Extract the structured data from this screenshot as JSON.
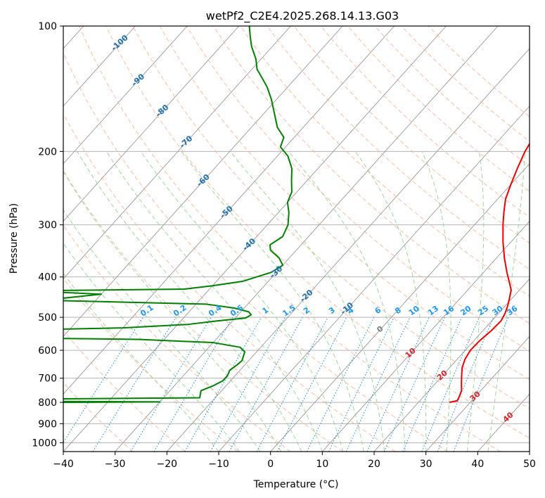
{
  "chart_data": {
    "type": "skew-t",
    "title": "wetPf2_C2E4.2025.268.14.13.G03",
    "xlabel": "Temperature (°C)",
    "ylabel": "Pressure (hPa)",
    "xlim": [
      -40,
      50
    ],
    "ylim": [
      1050,
      100
    ],
    "x_ticks": [
      -40,
      -30,
      -20,
      -10,
      0,
      10,
      20,
      30,
      40,
      50
    ],
    "y_ticks": [
      100,
      200,
      300,
      400,
      500,
      600,
      700,
      800,
      900,
      1000
    ],
    "pressure_scale": "log",
    "grid": true,
    "temperature_profile": {
      "color": "#ee0000",
      "points": [
        [
          800,
          26.0
        ],
        [
          793,
          27.2
        ],
        [
          780,
          27.0
        ],
        [
          750,
          26.3
        ],
        [
          720,
          25.0
        ],
        [
          690,
          23.7
        ],
        [
          660,
          22.4
        ],
        [
          630,
          21.5
        ],
        [
          600,
          21.0
        ],
        [
          570,
          21.1
        ],
        [
          540,
          21.6
        ],
        [
          510,
          21.8
        ],
        [
          490,
          21.3
        ],
        [
          470,
          20.5
        ],
        [
          450,
          19.5
        ],
        [
          430,
          18.4
        ],
        [
          410,
          16.5
        ],
        [
          390,
          14.5
        ],
        [
          360,
          11.5
        ],
        [
          330,
          8.5
        ],
        [
          300,
          5.5
        ],
        [
          280,
          3.5
        ],
        [
          260,
          1.5
        ],
        [
          240,
          0.0
        ],
        [
          220,
          -1.5
        ],
        [
          200,
          -3.0
        ],
        [
          185,
          -3.8
        ],
        [
          170,
          -4.5
        ],
        [
          155,
          -5.0
        ],
        [
          140,
          -6.0
        ],
        [
          130,
          -7.5
        ],
        [
          122,
          -8.5
        ],
        [
          115,
          -9.0
        ],
        [
          108,
          -10.0
        ],
        [
          100,
          -11.5
        ]
      ]
    },
    "dewpoint_profile": {
      "color": "#008000",
      "points": [
        [
          800,
          -50.0
        ],
        [
          798,
          -30.0
        ],
        [
          796,
          -48.0
        ],
        [
          790,
          -80.0
        ],
        [
          780,
          -23.0
        ],
        [
          765,
          -23.5
        ],
        [
          750,
          -24.0
        ],
        [
          730,
          -22.5
        ],
        [
          710,
          -21.5
        ],
        [
          690,
          -21.5
        ],
        [
          670,
          -22.0
        ],
        [
          650,
          -21.5
        ],
        [
          635,
          -21.3
        ],
        [
          620,
          -21.8
        ],
        [
          605,
          -22.3
        ],
        [
          590,
          -24.0
        ],
        [
          575,
          -30.0
        ],
        [
          565,
          -45.0
        ],
        [
          558,
          -80.0
        ],
        [
          540,
          -80.0
        ],
        [
          530,
          -50.0
        ],
        [
          520,
          -38.0
        ],
        [
          510,
          -33.0
        ],
        [
          502,
          -28.0
        ],
        [
          493,
          -27.5
        ],
        [
          485,
          -28.5
        ],
        [
          475,
          -32.0
        ],
        [
          465,
          -38.0
        ],
        [
          455,
          -70.0
        ],
        [
          440,
          -60.0
        ],
        [
          432,
          -75.0
        ],
        [
          428,
          -45.0
        ],
        [
          420,
          -40.0
        ],
        [
          410,
          -35.0
        ],
        [
          400,
          -33.0
        ],
        [
          390,
          -31.0
        ],
        [
          375,
          -30.0
        ],
        [
          360,
          -32.0
        ],
        [
          345,
          -35.0
        ],
        [
          335,
          -36.0
        ],
        [
          320,
          -35.0
        ],
        [
          300,
          -36.0
        ],
        [
          280,
          -38.0
        ],
        [
          265,
          -40.0
        ],
        [
          250,
          -41.0
        ],
        [
          235,
          -43.0
        ],
        [
          220,
          -45.0
        ],
        [
          205,
          -48.0
        ],
        [
          195,
          -51.0
        ],
        [
          185,
          -52.0
        ],
        [
          175,
          -55.0
        ],
        [
          162,
          -58.0
        ],
        [
          150,
          -61.0
        ],
        [
          140,
          -64.0
        ],
        [
          132,
          -67.0
        ],
        [
          127,
          -69.0
        ],
        [
          120,
          -71.0
        ],
        [
          112,
          -74.0
        ],
        [
          106,
          -76.0
        ],
        [
          100,
          -78.0
        ]
      ]
    },
    "dry_adiabat_labels": [
      "-100",
      "-90",
      "-80",
      "-70",
      "-60",
      "-50",
      "-40",
      "-30",
      "-20",
      "-10"
    ],
    "moist_adiabat_labels": [
      "0",
      "10",
      "20",
      "30",
      "40"
    ],
    "mixing_ratio_labels": [
      "0.1",
      "0.2",
      "0.4",
      "0.6",
      "1",
      "1.5",
      "2",
      "3",
      "4",
      "6",
      "8",
      "10",
      "13",
      "16",
      "20",
      "25",
      "30",
      "36"
    ],
    "colors": {
      "temperature": "#ee0000",
      "dewpoint": "#008000",
      "isotherm": "#999999",
      "isobar": "#aaaaaa",
      "dry_adiabat": "#ff9f7f",
      "moist_adiabat": "#90cf90",
      "mixing_ratio": "#1e88e5",
      "dry_label": "#1f6fb0",
      "moist_label_warm": "#d62728",
      "moist_label_zero": "#7f7f7f",
      "mixing_label": "#2196f3",
      "curved": "#d2b48c"
    }
  }
}
